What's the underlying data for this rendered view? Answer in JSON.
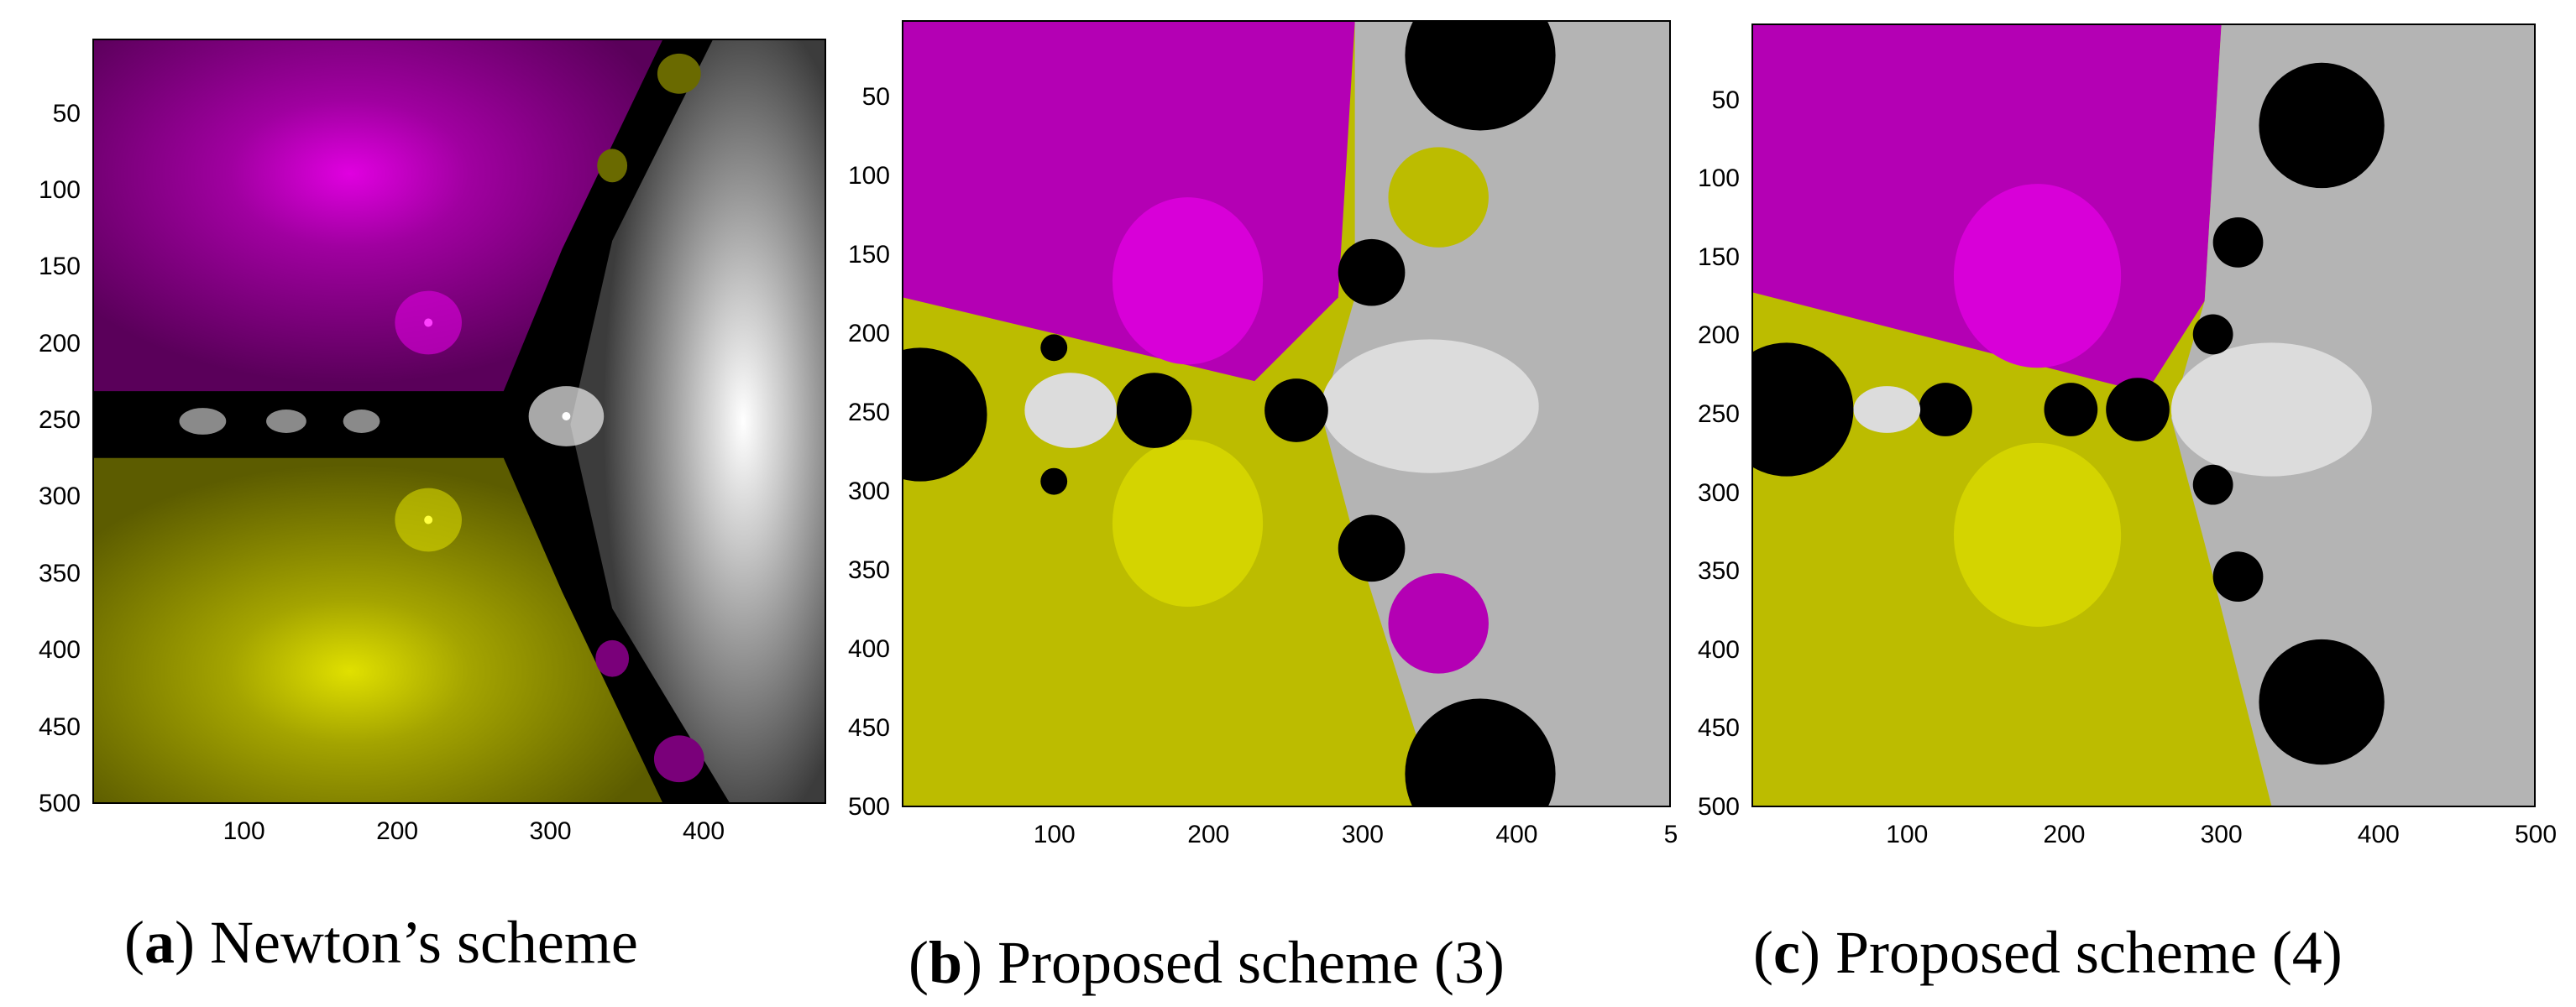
{
  "panels": [
    {
      "id": "a",
      "caption_letter": "a",
      "caption_text": "Newton’s scheme",
      "y_ticks": [
        "50",
        "100",
        "150",
        "200",
        "250",
        "300",
        "350",
        "400",
        "450",
        "500"
      ],
      "x_ticks": [
        "100",
        "200",
        "300",
        "400"
      ],
      "roots_marked": true
    },
    {
      "id": "b",
      "caption_letter": "b",
      "caption_text": "Proposed scheme (3)",
      "y_ticks": [
        "50",
        "100",
        "150",
        "200",
        "250",
        "300",
        "350",
        "400",
        "450",
        "500"
      ],
      "x_ticks": [
        "100",
        "200",
        "300",
        "400",
        "5"
      ]
    },
    {
      "id": "c",
      "caption_letter": "c",
      "caption_text": "Proposed scheme (4)",
      "y_ticks": [
        "50",
        "100",
        "150",
        "200",
        "250",
        "300",
        "350",
        "400",
        "450",
        "500"
      ],
      "x_ticks": [
        "100",
        "200",
        "300",
        "400",
        "500"
      ]
    }
  ],
  "colors": {
    "magenta": "#b400b4",
    "magenta_dark": "#6e006e",
    "magenta_light": "#d800d8",
    "yellow": "#bcbc00",
    "yellow_dark": "#6e6e00",
    "yellow_light": "#d4d400",
    "gray": "#b4b4b4",
    "gray_dark": "#4a4a4a",
    "gray_light": "#dcdcdc",
    "black": "#000000"
  }
}
